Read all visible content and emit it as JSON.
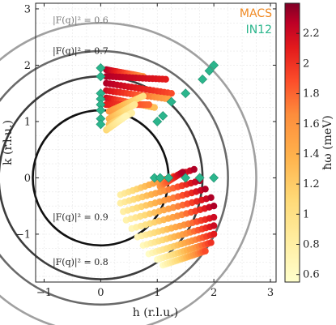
{
  "chart_data": {
    "type": "scatter",
    "xlabel": "h (r.l.u.)",
    "ylabel": "k (r.l.u.)",
    "xlim": [
      -1.15,
      3.1
    ],
    "ylim": [
      -1.85,
      3.1
    ],
    "xticks": [
      -1,
      0,
      1,
      2,
      3
    ],
    "yticks": [
      -1,
      0,
      1,
      2,
      3
    ],
    "grid": true,
    "colorbar": {
      "label": "ħω (meV)",
      "range": [
        0.55,
        2.4
      ],
      "ticks": [
        "0.6",
        "0.8",
        "1",
        "1.2",
        "1.4",
        "1.6",
        "1.8",
        "2",
        "2.2"
      ],
      "colormap": "YlOrRd"
    },
    "legend": [
      {
        "name": "MACS",
        "color": "#f08a24"
      },
      {
        "name": "IN12",
        "color": "#2bb58c"
      }
    ],
    "form_factor_circles": [
      {
        "radius": 1.2,
        "label": "|F(q)|² = 0.9",
        "color": "#111111"
      },
      {
        "radius": 1.8,
        "label": "|F(q)|² = 0.8",
        "color": "#3d3d3d"
      },
      {
        "radius": 2.25,
        "label": "|F(q)|² = 0.7",
        "color": "#6a6a6a"
      },
      {
        "radius": 2.75,
        "label": "|F(q)|² = 0.6",
        "color": "#a0a0a0"
      }
    ],
    "in12_points": [
      [
        0,
        1.95
      ],
      [
        0,
        1.8
      ],
      [
        0,
        1.5
      ],
      [
        0,
        1.4
      ],
      [
        0,
        1.3
      ],
      [
        0,
        1.2
      ],
      [
        0,
        1.05
      ],
      [
        0,
        0.95
      ],
      [
        1.0,
        1.0
      ],
      [
        1.1,
        1.1
      ],
      [
        1.25,
        1.35
      ],
      [
        1.5,
        1.5
      ],
      [
        1.8,
        1.75
      ],
      [
        1.92,
        1.9
      ],
      [
        2.0,
        2.0
      ],
      [
        0.95,
        0.0
      ],
      [
        1.05,
        0.0
      ],
      [
        1.2,
        0.0
      ],
      [
        1.5,
        0.0
      ],
      [
        1.75,
        0.0
      ],
      [
        2.0,
        0.0
      ]
    ],
    "macs_upper_tracks": [
      {
        "from": [
          0.1,
          1.92
        ],
        "to": [
          0.75,
          1.8
        ],
        "e_from": 2.3,
        "e_to": 1.6
      },
      {
        "from": [
          0.1,
          1.8
        ],
        "to": [
          1.15,
          1.75
        ],
        "e_from": 2.3,
        "e_to": 2.1
      },
      {
        "from": [
          0.1,
          1.68
        ],
        "to": [
          1.25,
          1.5
        ],
        "e_from": 2.3,
        "e_to": 1.9
      },
      {
        "from": [
          0.1,
          1.55
        ],
        "to": [
          1.2,
          1.4
        ],
        "e_from": 2.2,
        "e_to": 1.5
      },
      {
        "from": [
          0.1,
          1.42
        ],
        "to": [
          0.95,
          1.25
        ],
        "e_from": 2.2,
        "e_to": 1.3
      },
      {
        "from": [
          0.1,
          1.3
        ],
        "to": [
          0.85,
          1.3
        ],
        "e_from": 2.1,
        "e_to": 1.8
      },
      {
        "from": [
          0.15,
          1.18
        ],
        "to": [
          0.75,
          1.45
        ],
        "e_from": 1.6,
        "e_to": 1.0
      },
      {
        "from": [
          0.15,
          1.05
        ],
        "to": [
          0.6,
          1.3
        ],
        "e_from": 1.4,
        "e_to": 0.9
      },
      {
        "from": [
          0.15,
          0.95
        ],
        "to": [
          0.55,
          1.15
        ],
        "e_from": 1.3,
        "e_to": 0.8
      },
      {
        "from": [
          0.1,
          0.85
        ],
        "to": [
          0.45,
          1.1
        ],
        "e_from": 1.1,
        "e_to": 0.7
      }
    ],
    "macs_lower_tracks": [
      {
        "from": [
          0.35,
          -0.3
        ],
        "to": [
          1.65,
          0.15
        ],
        "e_from": 0.8,
        "e_to": 2.3
      },
      {
        "from": [
          0.35,
          -0.45
        ],
        "to": [
          1.75,
          -0.05
        ],
        "e_from": 0.8,
        "e_to": 2.3
      },
      {
        "from": [
          0.4,
          -0.6
        ],
        "to": [
          1.85,
          -0.2
        ],
        "e_from": 0.8,
        "e_to": 2.3
      },
      {
        "from": [
          0.45,
          -0.75
        ],
        "to": [
          1.95,
          -0.35
        ],
        "e_from": 0.75,
        "e_to": 2.3
      },
      {
        "from": [
          0.55,
          -0.9
        ],
        "to": [
          2.0,
          -0.5
        ],
        "e_from": 0.7,
        "e_to": 2.3
      },
      {
        "from": [
          0.65,
          -1.05
        ],
        "to": [
          2.0,
          -0.7
        ],
        "e_from": 0.7,
        "e_to": 2.2
      },
      {
        "from": [
          0.75,
          -1.2
        ],
        "to": [
          2.0,
          -0.85
        ],
        "e_from": 0.65,
        "e_to": 2.2
      },
      {
        "from": [
          0.85,
          -1.35
        ],
        "to": [
          2.0,
          -1.0
        ],
        "e_from": 0.6,
        "e_to": 2.1
      },
      {
        "from": [
          1.0,
          -1.45
        ],
        "to": [
          1.95,
          -1.15
        ],
        "e_from": 0.6,
        "e_to": 2.0
      },
      {
        "from": [
          1.1,
          -1.55
        ],
        "to": [
          1.85,
          -1.3
        ],
        "e_from": 0.6,
        "e_to": 1.9
      },
      {
        "from": [
          1.05,
          -0.15
        ],
        "to": [
          1.45,
          0.1
        ],
        "e_from": 1.6,
        "e_to": 2.3
      }
    ]
  }
}
